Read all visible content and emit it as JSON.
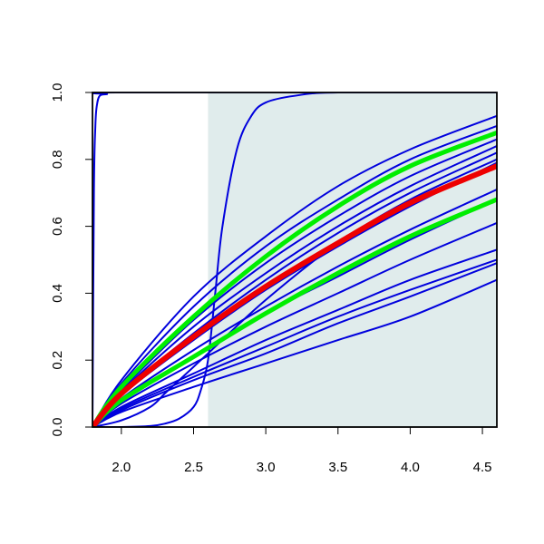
{
  "chart_data": {
    "type": "line",
    "title": "",
    "xlabel": "",
    "ylabel": "",
    "xlim": [
      1.8,
      4.6
    ],
    "ylim": [
      0.0,
      1.0
    ],
    "grid": false,
    "legend": "none",
    "x_ticks": [
      "2.0",
      "2.5",
      "3.0",
      "3.5",
      "4.0",
      "4.5"
    ],
    "y_ticks": [
      "0.0",
      "0.2",
      "0.4",
      "0.6",
      "0.8",
      "1.0"
    ],
    "shaded_region": {
      "x_from": 2.6,
      "x_to": 4.6,
      "color": "#e0ecec"
    },
    "colors": {
      "samples": "#0000dd",
      "band": "#00ee00",
      "center": "#ee0000"
    },
    "series": [
      {
        "role": "sample",
        "color": "#0000dd",
        "x": [
          1.8,
          2.0,
          2.5,
          3.0,
          3.5,
          4.0,
          4.6
        ],
        "y": [
          0.0,
          0.045,
          0.12,
          0.19,
          0.26,
          0.33,
          0.44
        ]
      },
      {
        "role": "sample",
        "color": "#0000dd",
        "x": [
          1.8,
          2.0,
          2.5,
          3.0,
          3.5,
          4.0,
          4.6
        ],
        "y": [
          0.0,
          0.05,
          0.14,
          0.22,
          0.31,
          0.39,
          0.49
        ]
      },
      {
        "role": "sample",
        "color": "#0000dd",
        "x": [
          1.8,
          2.0,
          2.5,
          3.0,
          3.5,
          4.0,
          4.6
        ],
        "y": [
          0.0,
          0.055,
          0.15,
          0.24,
          0.33,
          0.41,
          0.5
        ]
      },
      {
        "role": "sample",
        "color": "#0000dd",
        "x": [
          1.8,
          2.0,
          2.5,
          3.0,
          3.5,
          4.0,
          4.6
        ],
        "y": [
          0.0,
          0.06,
          0.16,
          0.26,
          0.35,
          0.44,
          0.53
        ]
      },
      {
        "role": "sample",
        "color": "#0000dd",
        "x": [
          1.8,
          2.0,
          2.5,
          3.0,
          3.5,
          4.0,
          4.6
        ],
        "y": [
          0.0,
          0.07,
          0.19,
          0.3,
          0.4,
          0.5,
          0.61
        ]
      },
      {
        "role": "sample",
        "color": "#0000dd",
        "x": [
          1.8,
          2.0,
          2.5,
          3.0,
          3.5,
          4.0,
          4.6
        ],
        "y": [
          0.0,
          0.08,
          0.21,
          0.34,
          0.45,
          0.56,
          0.68
        ]
      },
      {
        "role": "sample",
        "color": "#0000dd",
        "x": [
          1.8,
          2.0,
          2.5,
          3.0,
          3.5,
          4.0,
          4.6
        ],
        "y": [
          0.0,
          0.085,
          0.23,
          0.36,
          0.48,
          0.59,
          0.71
        ]
      },
      {
        "role": "sample",
        "color": "#0000dd",
        "x": [
          1.8,
          2.0,
          2.5,
          3.0,
          3.5,
          4.0,
          4.6
        ],
        "y": [
          0.0,
          0.095,
          0.26,
          0.41,
          0.54,
          0.66,
          0.79
        ]
      },
      {
        "role": "sample",
        "color": "#0000dd",
        "x": [
          1.8,
          2.0,
          2.5,
          3.0,
          3.5,
          4.0,
          4.6
        ],
        "y": [
          0.0,
          0.1,
          0.28,
          0.44,
          0.58,
          0.7,
          0.82
        ]
      },
      {
        "role": "sample",
        "color": "#0000dd",
        "x": [
          1.8,
          2.0,
          2.5,
          3.0,
          3.5,
          4.0,
          4.6
        ],
        "y": [
          0.0,
          0.105,
          0.3,
          0.46,
          0.6,
          0.72,
          0.84
        ]
      },
      {
        "role": "sample",
        "color": "#0000dd",
        "x": [
          1.8,
          2.0,
          2.5,
          3.0,
          3.5,
          4.0,
          4.6
        ],
        "y": [
          0.0,
          0.11,
          0.32,
          0.49,
          0.63,
          0.75,
          0.86
        ]
      },
      {
        "role": "sample",
        "color": "#0000dd",
        "x": [
          1.8,
          2.0,
          2.5,
          3.0,
          3.5,
          4.0,
          4.6
        ],
        "y": [
          0.0,
          0.13,
          0.36,
          0.54,
          0.68,
          0.8,
          0.9
        ]
      },
      {
        "role": "sample",
        "color": "#0000dd",
        "x": [
          1.8,
          2.0,
          2.5,
          3.0,
          3.5,
          4.0,
          4.6
        ],
        "y": [
          0.0,
          0.14,
          0.39,
          0.57,
          0.72,
          0.83,
          0.93
        ]
      },
      {
        "role": "sample",
        "color": "#0000dd",
        "x": [
          1.8,
          2.0,
          2.2,
          2.3,
          2.4,
          2.5,
          2.6,
          3.0,
          3.5,
          4.0,
          4.6
        ],
        "y": [
          0.0,
          0.02,
          0.06,
          0.1,
          0.14,
          0.18,
          0.22,
          0.38,
          0.55,
          0.68,
          0.8
        ]
      },
      {
        "role": "sample",
        "color": "#0000dd",
        "x": [
          1.8,
          2.0,
          2.2,
          2.3,
          2.4,
          2.5,
          2.55,
          2.6,
          2.65,
          2.7,
          2.8,
          2.9,
          3.0,
          3.2,
          3.5,
          4.6
        ],
        "y": [
          0.0,
          0.0,
          0.003,
          0.01,
          0.025,
          0.06,
          0.11,
          0.2,
          0.4,
          0.6,
          0.83,
          0.93,
          0.97,
          0.99,
          1.0,
          1.0
        ]
      },
      {
        "role": "sample",
        "color": "#0000dd",
        "x": [
          1.8,
          1.81,
          1.82,
          1.83,
          1.85,
          1.9,
          2.0,
          4.6
        ],
        "y": [
          0.0,
          0.7,
          0.9,
          0.96,
          0.99,
          0.995,
          1.0,
          1.0
        ]
      },
      {
        "role": "band",
        "color": "#00ee00",
        "x": [
          1.8,
          2.0,
          2.5,
          3.0,
          3.5,
          4.0,
          4.6
        ],
        "y": [
          0.0,
          0.08,
          0.21,
          0.34,
          0.46,
          0.57,
          0.68
        ]
      },
      {
        "role": "band",
        "color": "#00ee00",
        "x": [
          1.8,
          2.0,
          2.5,
          3.0,
          3.5,
          4.0,
          4.6
        ],
        "y": [
          0.0,
          0.12,
          0.33,
          0.51,
          0.66,
          0.78,
          0.88
        ]
      },
      {
        "role": "center",
        "color": "#ee0000",
        "x": [
          1.8,
          2.0,
          2.5,
          3.0,
          3.5,
          4.0,
          4.6
        ],
        "y": [
          0.0,
          0.1,
          0.27,
          0.42,
          0.55,
          0.67,
          0.78
        ]
      }
    ]
  }
}
